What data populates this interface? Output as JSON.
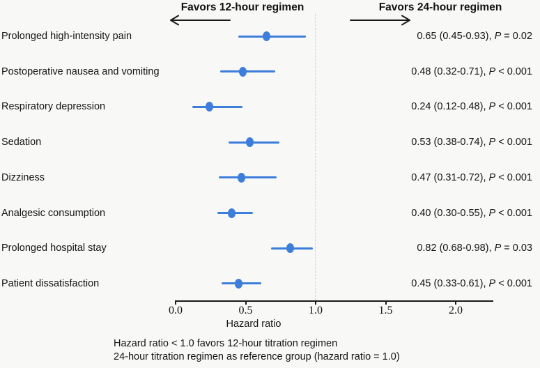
{
  "figure": {
    "header": {
      "left": "Favors 12-hour regimen",
      "right": "Favors 24-hour regimen"
    },
    "footer": {
      "line1": "Hazard ratio < 1.0 favors 12-hour titration regimen",
      "line2": "24-hour titration regimen as reference group (hazard ratio = 1.0)"
    }
  },
  "chart_data": {
    "type": "forest",
    "xlabel": "Hazard ratio",
    "xlim": [
      0,
      2.27
    ],
    "reference_line": 1.0,
    "tick_labels": [
      "0.0",
      "0.5",
      "1.0",
      "1.5",
      "2.0"
    ],
    "tick_values": [
      0,
      0.5,
      1.0,
      1.5,
      2.0
    ],
    "rows": [
      {
        "label": "Prolonged high-intensity pain",
        "estimate": 0.65,
        "ci_low": 0.45,
        "ci_high": 0.93,
        "annotation_value": "0.65 (0.45-0.93), ",
        "p_symbol": "P",
        "p_text": " = 0.02"
      },
      {
        "label": "Postoperative nausea and vomiting",
        "estimate": 0.48,
        "ci_low": 0.32,
        "ci_high": 0.71,
        "annotation_value": "0.48 (0.32-0.71), ",
        "p_symbol": "P",
        "p_text": " < 0.001"
      },
      {
        "label": "Respiratory depression",
        "estimate": 0.24,
        "ci_low": 0.12,
        "ci_high": 0.48,
        "annotation_value": "0.24 (0.12-0.48), ",
        "p_symbol": "P",
        "p_text": " < 0.001"
      },
      {
        "label": "Sedation",
        "estimate": 0.53,
        "ci_low": 0.38,
        "ci_high": 0.74,
        "annotation_value": "0.53 (0.38-0.74), ",
        "p_symbol": "P",
        "p_text": " < 0.001"
      },
      {
        "label": "Dizziness",
        "estimate": 0.47,
        "ci_low": 0.31,
        "ci_high": 0.72,
        "annotation_value": "0.47 (0.31-0.72), ",
        "p_symbol": "P",
        "p_text": " < 0.001"
      },
      {
        "label": "Analgesic consumption",
        "estimate": 0.4,
        "ci_low": 0.3,
        "ci_high": 0.55,
        "annotation_value": "0.40 (0.30-0.55), ",
        "p_symbol": "P",
        "p_text": " < 0.001"
      },
      {
        "label": "Prolonged hospital stay",
        "estimate": 0.82,
        "ci_low": 0.68,
        "ci_high": 0.98,
        "annotation_value": "0.82 (0.68-0.98), ",
        "p_symbol": "P",
        "p_text": " = 0.03"
      },
      {
        "label": "Patient dissatisfaction",
        "estimate": 0.45,
        "ci_low": 0.33,
        "ci_high": 0.61,
        "annotation_value": "0.45 (0.33-0.61), ",
        "p_symbol": "P",
        "p_text": " < 0.001"
      }
    ],
    "colors": {
      "marker": "#3d7edb",
      "reference_line": "#d2d2d2",
      "axis": "#1a1a1a",
      "text": "#141414",
      "background": "#f8f8f6"
    }
  }
}
